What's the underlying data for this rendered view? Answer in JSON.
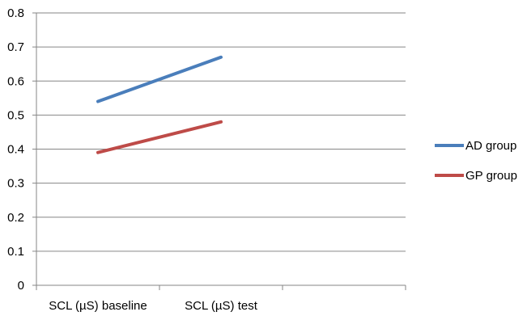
{
  "chart_data": {
    "type": "line",
    "categories": [
      "SCL (µS) baseline",
      "SCL (µS) test"
    ],
    "series": [
      {
        "name": "AD group",
        "values": [
          0.54,
          0.67
        ],
        "color": "#4a7ebb"
      },
      {
        "name": "GP group",
        "values": [
          0.39,
          0.48
        ],
        "color": "#be4b48"
      }
    ],
    "ylim": [
      0,
      0.8
    ],
    "yticks": [
      "0",
      "0.1",
      "0.2",
      "0.3",
      "0.4",
      "0.5",
      "0.6",
      "0.7",
      "0.8"
    ],
    "grid": true,
    "legend_position": "right",
    "title": "",
    "xlabel": "",
    "ylabel": ""
  }
}
